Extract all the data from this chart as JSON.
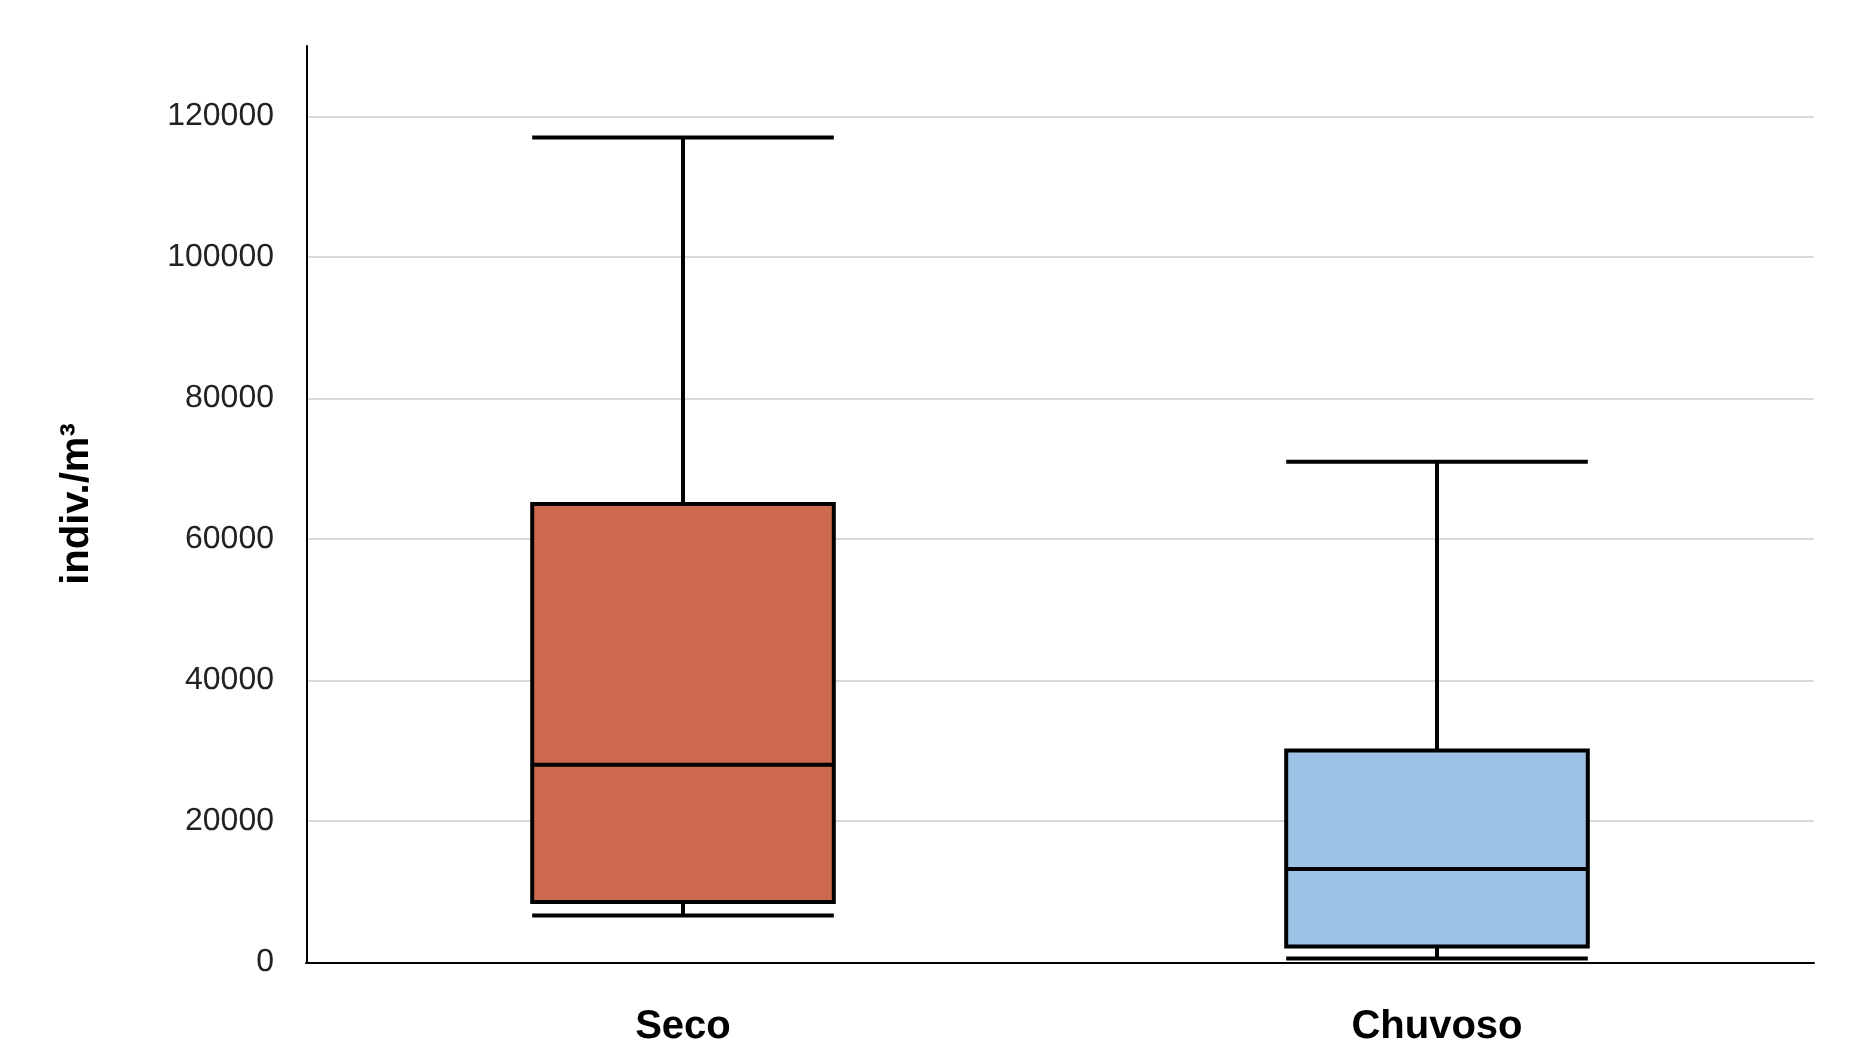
{
  "chart_data": {
    "type": "box",
    "ylabel": "indiv./m³",
    "categories": [
      "Seco",
      "Chuvoso"
    ],
    "boxes": [
      {
        "low": 6600,
        "q1": 8500,
        "median": 28000,
        "q3": 65000,
        "high": 117000
      },
      {
        "low": 500,
        "q1": 2200,
        "median": 13200,
        "q3": 30000,
        "high": 71000
      }
    ],
    "colors": [
      "#cd6a4e",
      "#9dc3e6"
    ],
    "ylim": [
      0,
      130000
    ],
    "yticks": [
      0,
      20000,
      40000,
      60000,
      80000,
      100000,
      120000
    ],
    "grid": "y"
  }
}
